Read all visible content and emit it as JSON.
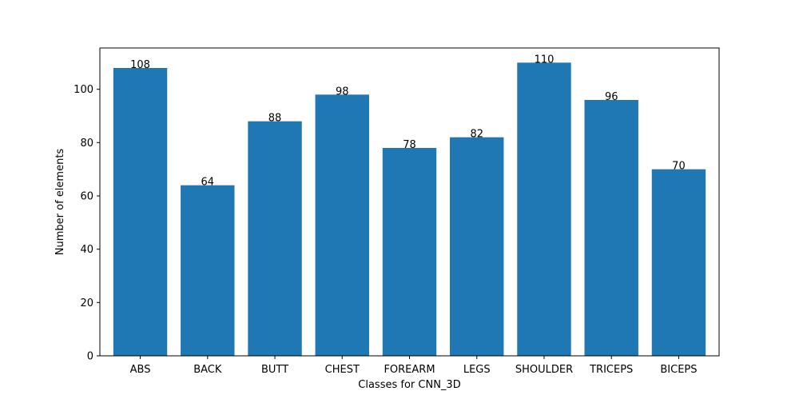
{
  "chart_data": {
    "type": "bar",
    "categories": [
      "ABS",
      "BACK",
      "BUTT",
      "CHEST",
      "FOREARM",
      "LEGS",
      "SHOULDER",
      "TRICEPS",
      "BICEPS"
    ],
    "values": [
      108,
      64,
      88,
      98,
      78,
      82,
      110,
      96,
      70
    ],
    "data_labels": [
      "108",
      "64",
      "88",
      "98",
      "78",
      "82",
      "110",
      "96",
      "70"
    ],
    "xlabel": "Classes for CNN_3D",
    "ylabel": "Number of elements",
    "ylim": [
      0,
      115.5
    ],
    "yticks": [
      0,
      20,
      40,
      60,
      80,
      100
    ],
    "ytick_labels": [
      "0",
      "20",
      "40",
      "60",
      "80",
      "100"
    ],
    "bar_color": "#1f77b4",
    "grid": false,
    "legend": "none"
  }
}
